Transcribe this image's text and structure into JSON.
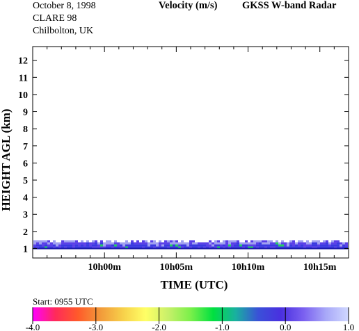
{
  "header": {
    "date": "October   8, 1998",
    "campaign": "CLARE 98",
    "location": "Chilbolton, UK",
    "quantity": "Velocity (m/s)",
    "instrument": "GKSS  W-band Radar"
  },
  "start_label": "Start: 0955 UTC",
  "colors": {
    "ramp": [
      "#ff00ff",
      "#ff2a5a",
      "#ff5a2a",
      "#f29a3a",
      "#f7d04a",
      "#ffff66",
      "#c8f06a",
      "#7af04a",
      "#00e040",
      "#19b0a0",
      "#3a50d8",
      "#4a30e0",
      "#7a60f0",
      "#a8a8f8",
      "#d0d8ff"
    ],
    "echo_low": "#3a3ae0",
    "echo_mid": "#5a40e8",
    "echo_top": "#a0a0f0",
    "echo_green": "#20d060"
  },
  "chart_data": {
    "type": "heatmap",
    "title": "Velocity (m/s)",
    "xlabel": "TIME (UTC)",
    "ylabel": "HEIGHT AGL (km)",
    "xlim": [
      "09h55m",
      "10h17m"
    ],
    "ylim": [
      0.45,
      12.8
    ],
    "x_ticks": [
      "10h00m",
      "10h05m",
      "10h10m",
      "10h15m"
    ],
    "y_ticks": [
      "1",
      "2",
      "3",
      "4",
      "5",
      "6",
      "7",
      "8",
      "9",
      "10",
      "11",
      "12"
    ],
    "echo_layer_km": [
      1.0,
      1.6
    ],
    "colorbar": {
      "range": [
        -4.0,
        1.0
      ],
      "ticks": [
        "-4.0",
        "-3.0",
        "-2.0",
        "-1.0",
        "0.0",
        "1.0"
      ]
    }
  }
}
